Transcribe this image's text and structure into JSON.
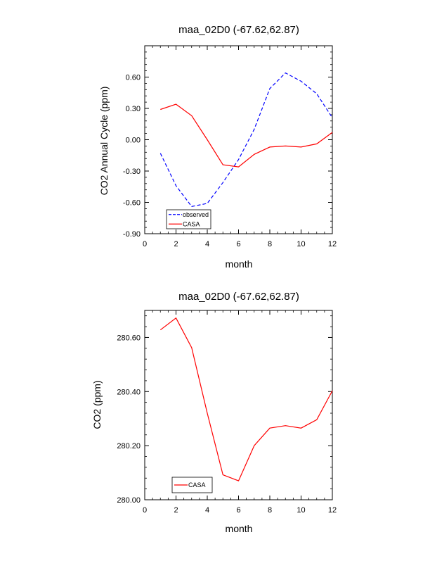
{
  "chart_data": [
    {
      "type": "line",
      "title": "maa_02D0 (-67.62,62.87)",
      "xlabel": "month",
      "ylabel": "CO2 Annual Cycle (ppm)",
      "xlim": [
        0,
        12
      ],
      "ylim": [
        -0.9,
        0.9
      ],
      "xticks": [
        0,
        2,
        4,
        6,
        8,
        10,
        12
      ],
      "xtick_labels": [
        "0",
        "2",
        "4",
        "6",
        "8",
        "10",
        "12"
      ],
      "yticks": [
        -0.9,
        -0.6,
        -0.3,
        0.0,
        0.3,
        0.6
      ],
      "ytick_labels": [
        "-0.90",
        "-0.60",
        "-0.30",
        "0.00",
        "0.30",
        "0.60"
      ],
      "legend_position": "bottom-left",
      "x": [
        1,
        2,
        3,
        4,
        5,
        6,
        7,
        8,
        9,
        10,
        11,
        12
      ],
      "series": [
        {
          "name": "observed",
          "color": "#0000ff",
          "dash": true,
          "values": [
            -0.13,
            -0.44,
            -0.64,
            -0.61,
            -0.41,
            -0.19,
            0.1,
            0.49,
            0.64,
            0.56,
            0.44,
            0.21
          ]
        },
        {
          "name": "CASA",
          "color": "#ff0000",
          "dash": false,
          "values": [
            0.29,
            0.34,
            0.23,
            0.0,
            -0.24,
            -0.26,
            -0.14,
            -0.07,
            -0.06,
            -0.07,
            -0.04,
            0.07
          ]
        }
      ]
    },
    {
      "type": "line",
      "title": "maa_02D0 (-67.62,62.87)",
      "xlabel": "month",
      "ylabel": "CO2 (ppm)",
      "xlim": [
        0,
        12
      ],
      "ylim": [
        280.0,
        280.7
      ],
      "xticks": [
        0,
        2,
        4,
        6,
        8,
        10,
        12
      ],
      "xtick_labels": [
        "0",
        "2",
        "4",
        "6",
        "8",
        "10",
        "12"
      ],
      "yticks": [
        280.0,
        280.2,
        280.4,
        280.6
      ],
      "ytick_labels": [
        "280.00",
        "280.20",
        "280.40",
        "280.60"
      ],
      "legend_position": "bottom-left",
      "x": [
        1,
        2,
        3,
        4,
        5,
        6,
        7,
        8,
        9,
        10,
        11,
        12
      ],
      "series": [
        {
          "name": "CASA",
          "color": "#ff0000",
          "dash": false,
          "values": [
            280.628,
            280.672,
            280.562,
            280.32,
            280.092,
            280.07,
            280.2,
            280.265,
            280.274,
            280.265,
            280.296,
            280.403
          ]
        }
      ]
    }
  ]
}
